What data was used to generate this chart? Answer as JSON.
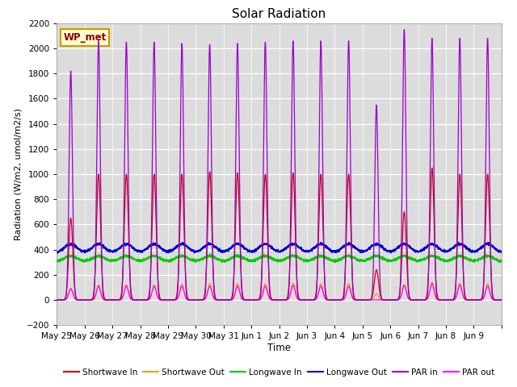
{
  "title": "Solar Radiation",
  "ylabel": "Radiation (W/m2, umol/m2/s)",
  "xlabel": "Time",
  "ylim": [
    -200,
    2200
  ],
  "yticks": [
    -200,
    0,
    200,
    400,
    600,
    800,
    1000,
    1200,
    1400,
    1600,
    1800,
    2000,
    2200
  ],
  "background_color": "#dcdcdc",
  "station_label": "WP_met",
  "num_days": 16,
  "day_labels": [
    "May 25",
    "May 26",
    "May 27",
    "May 28",
    "May 29",
    "May 30",
    "May 31",
    "Jun 1",
    "Jun 2",
    "Jun 3",
    "Jun 4",
    "Jun 5",
    "Jun 6",
    "Jun 7",
    "Jun 8",
    "Jun 9"
  ],
  "series": {
    "shortwave_in": {
      "color": "#cc0000",
      "label": "Shortwave In"
    },
    "shortwave_out": {
      "color": "#ff9900",
      "label": "Shortwave Out"
    },
    "longwave_in": {
      "color": "#00cc00",
      "label": "Longwave In"
    },
    "longwave_out": {
      "color": "#0000cc",
      "label": "Longwave Out"
    },
    "par_in": {
      "color": "#9900cc",
      "label": "PAR in"
    },
    "par_out": {
      "color": "#ff00ff",
      "label": "PAR out"
    }
  }
}
